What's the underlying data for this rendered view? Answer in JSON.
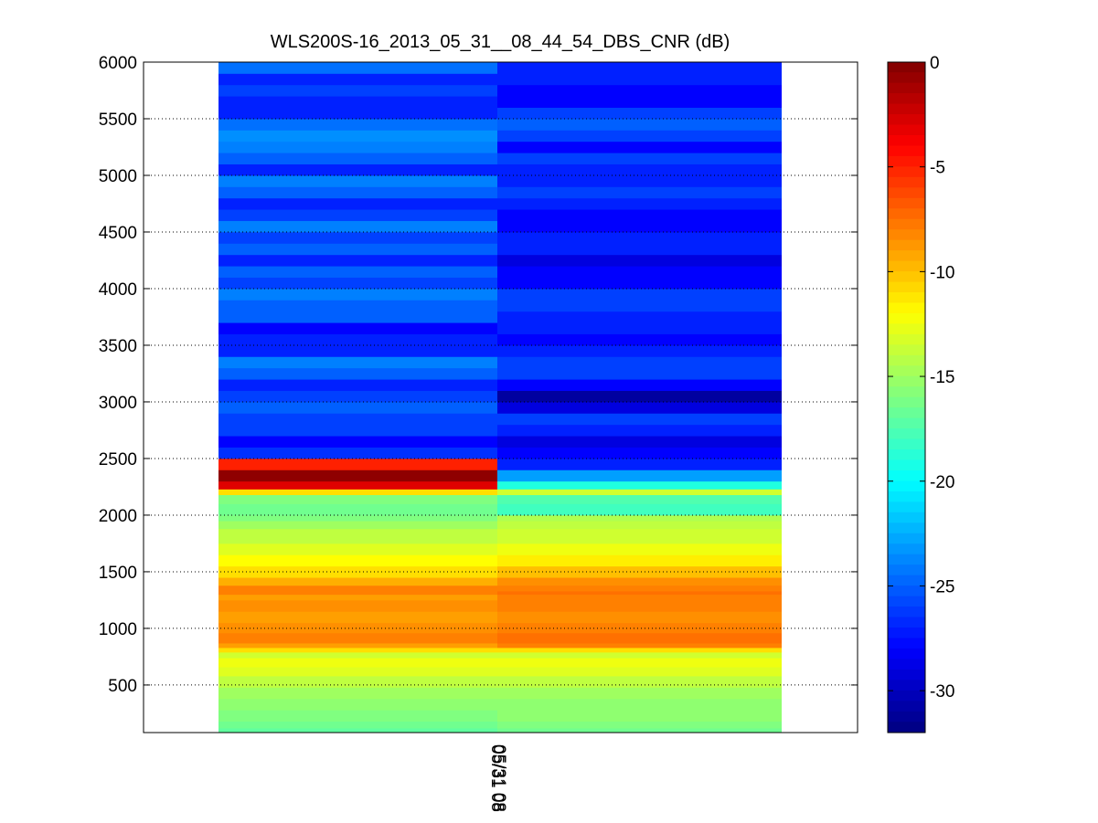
{
  "chart_data": {
    "type": "heatmap",
    "title": "WLS200S-16_2013_05_31__08_44_54_DBS_CNR (dB)",
    "xlabel": "",
    "ylabel": "",
    "ylim": [
      80,
      6000
    ],
    "y_ticks": [
      500,
      1000,
      1500,
      2000,
      2500,
      3000,
      3500,
      4000,
      4500,
      5000,
      5500,
      6000
    ],
    "x_tick_labels": [
      "05/31 08",
      "05/31 08"
    ],
    "grid": true,
    "colormap": "jet",
    "colorbar": {
      "range": [
        -32,
        0
      ],
      "ticks": [
        0,
        -5,
        -10,
        -15,
        -20,
        -25,
        -30
      ],
      "position": "right"
    },
    "column_bounds": [
      "start",
      "middle",
      "end"
    ],
    "y_bin_edges": [
      80,
      120,
      180,
      280,
      380,
      480,
      580,
      660,
      740,
      790,
      830,
      870,
      960,
      1050,
      1150,
      1250,
      1300,
      1330,
      1380,
      1450,
      1550,
      1650,
      1750,
      1880,
      1950,
      2000,
      2100,
      2180,
      2230,
      2300,
      2400,
      2500,
      2600,
      2700,
      2800,
      2900,
      3000,
      3100,
      3200,
      3300,
      3400,
      3500,
      3600,
      3700,
      3800,
      3900,
      4000,
      4100,
      4200,
      4300,
      4400,
      4500,
      4600,
      4700,
      4800,
      4900,
      5000,
      5100,
      5200,
      5300,
      5400,
      5500,
      5600,
      5700,
      5800,
      5900,
      6000
    ],
    "series": [
      {
        "values": [
          -17,
          -16.5,
          -16,
          -15.5,
          -15,
          -14,
          -13,
          -12.5,
          -13.5,
          -11,
          -9,
          -8,
          -8.5,
          -9,
          -8.5,
          -9,
          -8,
          -8,
          -9.5,
          -11,
          -12,
          -13,
          -14,
          -15,
          -16,
          -16.5,
          -16,
          -11,
          -3,
          -0.5,
          -5,
          -26.5,
          -28,
          -26,
          -26,
          -25,
          -26,
          -27,
          -25,
          -24,
          -27,
          -27,
          -28,
          -25,
          -25,
          -24,
          -26,
          -25,
          -27,
          -25,
          -26,
          -24,
          -26,
          -27,
          -25,
          -24,
          -27,
          -25,
          -24,
          -23.5,
          -24.5,
          -27,
          -27,
          -26,
          -27,
          -24.5
        ]
      },
      {
        "values": [
          -16.5,
          -16,
          -15.5,
          -15.5,
          -15,
          -14,
          -13,
          -12.5,
          -13.5,
          -11,
          -8,
          -7.5,
          -8,
          -8.5,
          -8,
          -8,
          -7.5,
          -8,
          -8.5,
          -10,
          -11.5,
          -12.5,
          -13.5,
          -14,
          -14.5,
          -18,
          -17.5,
          -13.5,
          -19,
          -23,
          -27,
          -28,
          -29,
          -27,
          -26,
          -29,
          -31,
          -28,
          -26,
          -26,
          -27,
          -28,
          -27,
          -27,
          -26,
          -26,
          -28,
          -28,
          -29,
          -27,
          -27,
          -28,
          -28,
          -27,
          -26,
          -27,
          -27,
          -26,
          -28,
          -26,
          -25,
          -26,
          -28,
          -28,
          -27,
          -27
        ]
      }
    ]
  }
}
